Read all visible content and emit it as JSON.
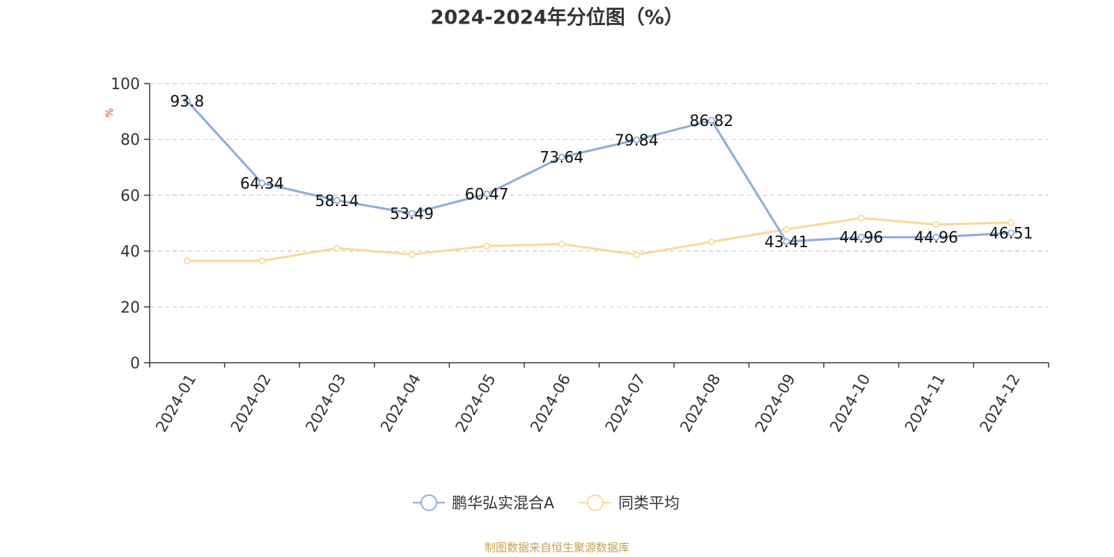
{
  "colors": {
    "series_main": "#8eaedb",
    "series_avg": "#fbd897",
    "grid": "#cccccc",
    "axis": "#333333",
    "unit": "#e53935",
    "source": "#c8a050"
  },
  "chart_data": {
    "type": "line",
    "title": "2024-2024年分位图（%）",
    "ylabel": "%",
    "xlabel": "",
    "ylim": [
      0,
      100
    ],
    "yticks": [
      "0",
      "20",
      "40",
      "60",
      "80",
      "100"
    ],
    "grid": true,
    "legend_position": "bottom-center",
    "categories": [
      "2024-01",
      "2024-02",
      "2024-03",
      "2024-04",
      "2024-05",
      "2024-06",
      "2024-07",
      "2024-08",
      "2024-09",
      "2024-10",
      "2024-11",
      "2024-12"
    ],
    "series": [
      {
        "name": "鹏华弘实混合A",
        "values": [
          93.8,
          64.34,
          58.14,
          53.49,
          60.47,
          73.64,
          79.84,
          86.82,
          43.41,
          44.96,
          44.96,
          46.51
        ],
        "labels": [
          "93.8",
          "64.34",
          "58.14",
          "53.49",
          "60.47",
          "73.64",
          "79.84",
          "86.82",
          "43.41",
          "44.96",
          "44.96",
          "46.51"
        ]
      },
      {
        "name": "同类平均",
        "values": [
          36.5,
          36.5,
          41.0,
          38.8,
          41.8,
          42.5,
          38.7,
          43.3,
          47.8,
          51.8,
          49.5,
          50.2
        ]
      }
    ]
  },
  "footer": {
    "source": "制图数据来自恒生聚源数据库"
  }
}
